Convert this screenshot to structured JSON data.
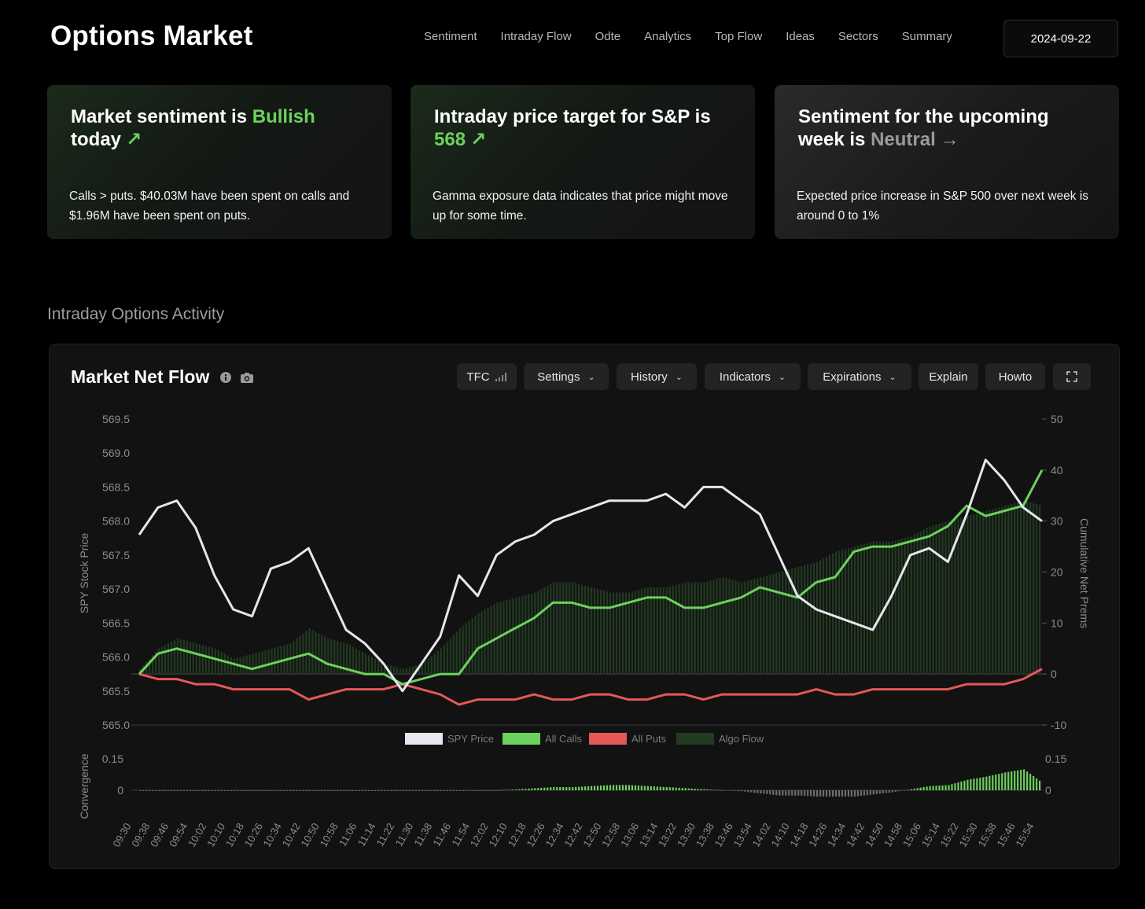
{
  "header": {
    "brand": "Options Market",
    "nav": [
      "Sentiment",
      "Intraday Flow",
      "Odte",
      "Analytics",
      "Top Flow",
      "Ideas",
      "Sectors",
      "Summary"
    ],
    "date": "2024-09-22"
  },
  "cards": [
    {
      "title_pre": "Market sentiment is ",
      "title_hl": "Bullish",
      "title_post": "today",
      "arrow": "↗",
      "body": "Calls > puts. $40.03M have been spent on calls and $1.96M have been spent on puts."
    },
    {
      "title_pre": "Intraday price target for S&P is",
      "title_hl": "568",
      "arrow": "↗",
      "body": "Gamma exposure data indicates that price might move up for some time."
    },
    {
      "title_pre": "Sentiment for the upcoming week is ",
      "title_hl": "Neutral",
      "arrow": "→",
      "body": "Expected price increase in S&P 500 over next week is around 0 to 1%"
    }
  ],
  "section_title": "Intraday Options Activity",
  "panel": {
    "title": "Market Net Flow",
    "toolbar": {
      "tfc": "TFC",
      "settings": "Settings",
      "history": "History",
      "indicators": "Indicators",
      "expirations": "Expirations",
      "explain": "Explain",
      "howto": "Howto"
    }
  },
  "colors": {
    "price": "#e6e6ee",
    "calls": "#6dd15e",
    "puts": "#e45858",
    "algo": "#223a22",
    "accent": "#6dd15e"
  },
  "chart_data": {
    "type": "line",
    "ylabel_left": "SPY Stock Price",
    "ylabel_right": "Cumulative Net Prems",
    "ylim_left": [
      565.0,
      569.5
    ],
    "ylim_right": [
      -10,
      50
    ],
    "yticks_left": [
      "569.5",
      "569.0",
      "568.5",
      "568.0",
      "567.5",
      "567.0",
      "566.5",
      "566.0",
      "565.5",
      "565.0"
    ],
    "yticks_right": [
      "50",
      "40",
      "30",
      "20",
      "10",
      "0",
      "-10"
    ],
    "legend": [
      "SPY Price",
      "All Calls",
      "All Puts",
      "Algo Flow"
    ],
    "legend_position": "bottom",
    "x": [
      "09:30",
      "09:38",
      "09:46",
      "09:54",
      "10:02",
      "10:10",
      "10:18",
      "10:26",
      "10:34",
      "10:42",
      "10:50",
      "10:58",
      "11:06",
      "11:14",
      "11:22",
      "11:30",
      "11:38",
      "11:46",
      "11:54",
      "12:02",
      "12:10",
      "12:18",
      "12:26",
      "12:34",
      "12:42",
      "12:50",
      "12:58",
      "13:06",
      "13:14",
      "13:22",
      "13:30",
      "13:38",
      "13:46",
      "13:54",
      "14:02",
      "14:10",
      "14:18",
      "14:26",
      "14:34",
      "14:42",
      "14:50",
      "14:58",
      "15:06",
      "15:14",
      "15:22",
      "15:30",
      "15:38",
      "15:46",
      "15:54"
    ],
    "series": [
      {
        "name": "SPY Price",
        "values": [
          567.8,
          568.2,
          568.3,
          567.9,
          567.2,
          566.7,
          566.6,
          567.3,
          567.4,
          567.6,
          567.0,
          566.4,
          566.2,
          565.9,
          565.5,
          565.9,
          566.3,
          567.2,
          566.9,
          567.5,
          567.7,
          567.8,
          568.0,
          568.1,
          568.2,
          568.3,
          568.3,
          568.3,
          568.4,
          568.2,
          568.5,
          568.5,
          568.3,
          568.1,
          567.5,
          566.9,
          566.7,
          566.6,
          566.5,
          566.4,
          566.9,
          567.5,
          567.6,
          567.4,
          568.1,
          568.9,
          568.6,
          568.2,
          568.0
        ]
      },
      {
        "name": "All Calls",
        "values": [
          0,
          4,
          5,
          4,
          3,
          2,
          1,
          2,
          3,
          4,
          2,
          1,
          0,
          0,
          -2,
          -1,
          0,
          0,
          5,
          7,
          9,
          11,
          14,
          14,
          13,
          13,
          14,
          15,
          15,
          13,
          13,
          14,
          15,
          17,
          16,
          15,
          18,
          19,
          24,
          25,
          25,
          26,
          27,
          29,
          33,
          31,
          32,
          33,
          40
        ]
      },
      {
        "name": "All Puts",
        "values": [
          0,
          -1,
          -1,
          -2,
          -2,
          -3,
          -3,
          -3,
          -3,
          -5,
          -4,
          -3,
          -3,
          -3,
          -2,
          -3,
          -4,
          -6,
          -5,
          -5,
          -5,
          -4,
          -5,
          -5,
          -4,
          -4,
          -5,
          -5,
          -4,
          -4,
          -5,
          -4,
          -4,
          -4,
          -4,
          -4,
          -3,
          -4,
          -4,
          -3,
          -3,
          -3,
          -3,
          -3,
          -2,
          -2,
          -2,
          -1,
          1
        ]
      },
      {
        "name": "Algo Flow",
        "values": [
          1,
          5,
          7,
          6,
          5,
          3,
          4,
          5,
          6,
          9,
          7,
          6,
          4,
          2,
          1,
          2,
          5,
          9,
          12,
          14,
          15,
          16,
          18,
          18,
          17,
          16,
          16,
          17,
          17,
          18,
          18,
          19,
          18,
          19,
          20,
          21,
          22,
          24,
          25,
          26,
          26,
          27,
          29,
          30,
          31,
          32,
          33,
          34,
          33
        ]
      }
    ],
    "sub_chart": {
      "ylabel": "Convergence",
      "yticks_left": [
        "0.15",
        "0"
      ],
      "yticks_right": [
        "0.15",
        "0"
      ],
      "ylim": [
        -0.03,
        0.15
      ],
      "values": [
        0,
        0,
        0,
        0,
        0,
        0,
        0,
        0,
        0,
        0,
        0,
        0,
        0,
        0,
        0,
        0,
        0,
        0,
        0,
        0,
        0.004,
        0.01,
        0.015,
        0.015,
        0.02,
        0.025,
        0.025,
        0.02,
        0.015,
        0.01,
        0.005,
        0,
        -0.005,
        -0.015,
        -0.025,
        -0.025,
        -0.03,
        -0.03,
        -0.03,
        -0.02,
        -0.01,
        0.005,
        0.02,
        0.025,
        0.05,
        0.065,
        0.085,
        0.1,
        0.035
      ]
    }
  }
}
